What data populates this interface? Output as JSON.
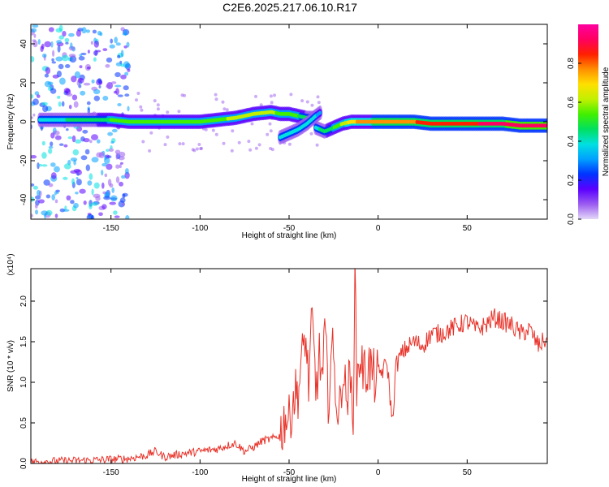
{
  "figure": {
    "title": "C2E6.2025.217.06.10.R17"
  },
  "chart_data": [
    {
      "type": "heatmap",
      "xlabel": "Height of straight line (km)",
      "ylabel": "Frequency (Hz)",
      "xlim": [
        -195,
        95
      ],
      "ylim": [
        -50,
        50
      ],
      "x_ticks": [
        -150,
        -100,
        -50,
        0,
        50
      ],
      "y_ticks": [
        -40,
        -20,
        0,
        20,
        40
      ],
      "grid": false,
      "colorbar": {
        "label": "Normalized spectral amplitude",
        "range": [
          0,
          1
        ],
        "ticks": [
          0.0,
          0.2,
          0.4,
          0.6,
          0.8
        ],
        "colormap": [
          "#e4d8f8",
          "#9b5cf0",
          "#5a00ff",
          "#0033ff",
          "#00a0ff",
          "#00e0e0",
          "#00e060",
          "#40f000",
          "#c0f000",
          "#ffe000",
          "#ff9000",
          "#ff2000",
          "#ff0060",
          "#ff00a0"
        ]
      },
      "ridges": [
        {
          "x": [
            -190,
            -180,
            -170,
            -160,
            -150,
            -140,
            -130,
            -120,
            -110,
            -100,
            -90,
            -80,
            -70,
            -60,
            -55,
            -50,
            -45,
            -40,
            -35
          ],
          "y": [
            1,
            1,
            1,
            1,
            1,
            0,
            0,
            0,
            0,
            0,
            1,
            2,
            4,
            5,
            4,
            4,
            3,
            2,
            2
          ],
          "strength": [
            0.35,
            0.4,
            0.45,
            0.45,
            0.5,
            0.5,
            0.5,
            0.5,
            0.55,
            0.55,
            0.55,
            0.6,
            0.6,
            0.6,
            0.55,
            0.55,
            0.5,
            0.45,
            0.4
          ]
        },
        {
          "x": [
            -55,
            -50,
            -45,
            -40,
            -35,
            -32
          ],
          "y": [
            -8,
            -6,
            -4,
            -1,
            3,
            5
          ],
          "strength": [
            0.4,
            0.4,
            0.4,
            0.35,
            0.35,
            0.3
          ]
        },
        {
          "x": [
            -35,
            -30,
            -25,
            -20,
            -15,
            -10,
            -5,
            0,
            10,
            20,
            30,
            40,
            50,
            60,
            70,
            80,
            90,
            95
          ],
          "y": [
            -3,
            -5,
            -3,
            -1,
            0,
            0,
            0,
            0,
            0,
            0,
            -1,
            -1,
            -1,
            -1,
            -1,
            -2,
            -2,
            -2
          ],
          "strength": [
            0.4,
            0.45,
            0.5,
            0.6,
            0.7,
            0.75,
            0.75,
            0.8,
            0.8,
            0.8,
            0.85,
            0.85,
            0.85,
            0.9,
            0.9,
            0.95,
            0.95,
            0.95
          ]
        }
      ]
    },
    {
      "type": "line",
      "xlabel": "Height of straight line (km)",
      "ylabel": "SNR (10 * v/v)",
      "y_exponent": "(x10⁴)",
      "xlim": [
        -195,
        95
      ],
      "ylim": [
        0,
        2.4
      ],
      "x_ticks": [
        -150,
        -100,
        -50,
        0,
        50
      ],
      "y_ticks": [
        0.0,
        0.5,
        1.0,
        1.5,
        2.0
      ],
      "y_tick_labels": [
        "0.0",
        "0.5",
        "1.0",
        "1.5",
        "2.0"
      ],
      "grid": false,
      "series": [
        {
          "color": "#e8332a",
          "x": [
            -195,
            -180,
            -160,
            -140,
            -130,
            -125,
            -120,
            -110,
            -100,
            -90,
            -85,
            -80,
            -75,
            -70,
            -65,
            -60,
            -55,
            -52,
            -50,
            -48,
            -45,
            -43,
            -41,
            -39,
            -37,
            -35,
            -33,
            -31,
            -30,
            -28,
            -26,
            -24,
            -22,
            -20,
            -18,
            -16,
            -14,
            -13,
            -12,
            -10,
            -8,
            -5,
            -2,
            0,
            3,
            5,
            8,
            10,
            12,
            15,
            20,
            25,
            30,
            35,
            40,
            45,
            50,
            55,
            60,
            65,
            70,
            75,
            80,
            85,
            90,
            95
          ],
          "y": [
            0.02,
            0.03,
            0.04,
            0.06,
            0.1,
            0.15,
            0.08,
            0.12,
            0.15,
            0.18,
            0.22,
            0.25,
            0.15,
            0.2,
            0.28,
            0.3,
            0.35,
            0.6,
            0.5,
            0.8,
            0.9,
            1.2,
            1.6,
            1.0,
            1.75,
            0.9,
            1.3,
            1.0,
            1.65,
            0.8,
            1.45,
            1.0,
            0.5,
            1.2,
            0.8,
            1.0,
            0.7,
            2.35,
            1.0,
            1.35,
            1.1,
            1.2,
            1.05,
            1.1,
            1.15,
            1.25,
            0.5,
            1.2,
            1.3,
            1.4,
            1.5,
            1.45,
            1.6,
            1.6,
            1.65,
            1.7,
            1.75,
            1.65,
            1.7,
            1.8,
            1.75,
            1.7,
            1.6,
            1.65,
            1.45,
            1.55
          ]
        }
      ]
    }
  ]
}
